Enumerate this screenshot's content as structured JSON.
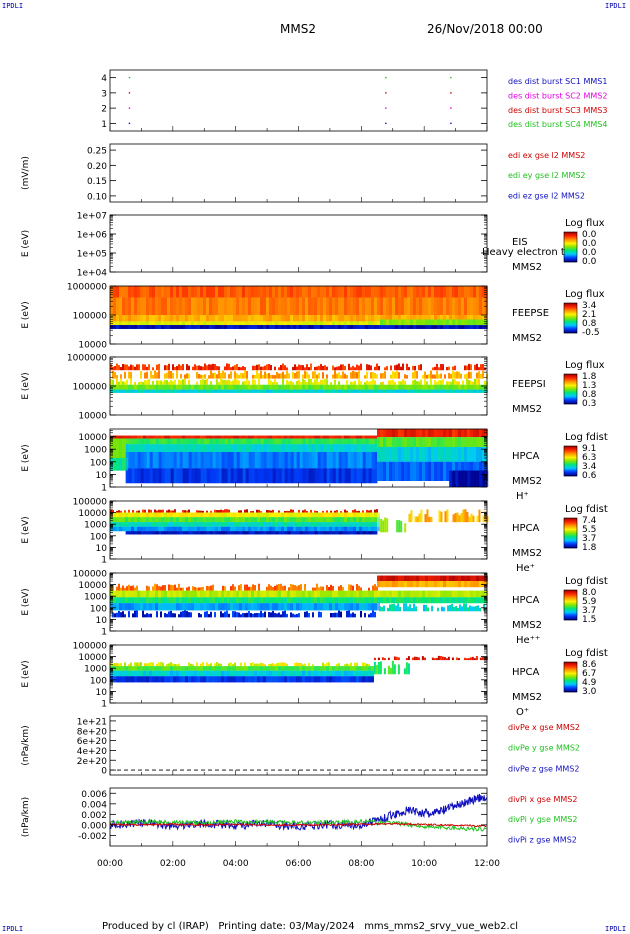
{
  "corner_label": "IPDLI",
  "header": {
    "spacecraft": "MMS2",
    "date": "26/Nov/2018 00:00"
  },
  "footer": {
    "text": "Produced by cl (IRAP)   Printing date: 03/May/2024   mms_mms2_srvy_vue_web2.cl"
  },
  "colors": {
    "blue": "#1010c0",
    "magenta": "#e000e0",
    "red": "#d00000",
    "green": "#20c020"
  },
  "chart_data": [
    {
      "type": "scatter",
      "id": "burst",
      "ylim": [
        0.5,
        4.5
      ],
      "yticks": [
        "1",
        "2",
        "3",
        "4"
      ],
      "legend": [
        {
          "label": "des dist burst SC1 MMS1",
          "color": "#1010c0"
        },
        {
          "label": "des dist burst SC2 MMS2",
          "color": "#e000e0"
        },
        {
          "label": "des dist burst SC3 MMS3",
          "color": "#d00000"
        },
        {
          "label": "des dist burst SC4 MMS4",
          "color": "#20c020"
        }
      ],
      "points": [
        {
          "x": 0.62,
          "y": 4,
          "color": "#20c020"
        },
        {
          "x": 0.62,
          "y": 3,
          "color": "#d00000"
        },
        {
          "x": 0.62,
          "y": 2,
          "color": "#e000e0"
        },
        {
          "x": 0.62,
          "y": 1,
          "color": "#1010c0"
        },
        {
          "x": 8.78,
          "y": 4,
          "color": "#20c020"
        },
        {
          "x": 8.78,
          "y": 3,
          "color": "#d00000"
        },
        {
          "x": 8.78,
          "y": 2,
          "color": "#e000e0"
        },
        {
          "x": 8.78,
          "y": 1,
          "color": "#1010c0"
        },
        {
          "x": 10.85,
          "y": 4,
          "color": "#20c020"
        },
        {
          "x": 10.85,
          "y": 3,
          "color": "#d00000"
        },
        {
          "x": 10.85,
          "y": 2,
          "color": "#e000e0"
        },
        {
          "x": 10.85,
          "y": 1,
          "color": "#1010c0"
        }
      ]
    },
    {
      "type": "line",
      "id": "edi",
      "ylabel": "(mV/m)",
      "ylim": [
        0.08,
        0.27
      ],
      "yticks": [
        "0.10",
        "0.15",
        "0.20",
        "0.25"
      ],
      "legend": [
        {
          "label": "edi ex gse l2 MMS2",
          "color": "#d00000"
        },
        {
          "label": "edi ey gse l2 MMS2",
          "color": "#20c020"
        },
        {
          "label": "edi ez gse l2 MMS2",
          "color": "#1010c0"
        }
      ],
      "series": []
    },
    {
      "type": "heatmap",
      "id": "eis",
      "ylabel": "E (eV)",
      "scale": "log",
      "ylim": [
        10000,
        10000000
      ],
      "yticks": [
        "1e+04",
        "1e+05",
        "1e+06",
        "1e+07"
      ],
      "instrument": [
        "EIS",
        "MMS2"
      ],
      "overlay_text": "Heavy electron t",
      "colorbar": {
        "title": "Log flux",
        "ticks": [
          "0.0",
          "0.0",
          "0.0",
          "0.0"
        ]
      },
      "bands": []
    },
    {
      "type": "heatmap",
      "id": "feepse",
      "ylabel": "E (eV)",
      "scale": "log",
      "ylim": [
        10000,
        1000000
      ],
      "yticks": [
        "10000",
        "100000",
        "1000000"
      ],
      "instrument": [
        "FEEPSE",
        "MMS2"
      ],
      "colorbar": {
        "title": "Log flux",
        "ticks": [
          "3.4",
          "2.1",
          "0.8",
          "-0.5"
        ]
      },
      "bands": [
        {
          "x": [
            0.0,
            12.0
          ],
          "e": [
            400000,
            1000000
          ],
          "level": 0.82
        },
        {
          "x": [
            0.0,
            12.0
          ],
          "e": [
            100000,
            400000
          ],
          "level": 0.78
        },
        {
          "x": [
            0.0,
            12.0
          ],
          "e": [
            60000,
            100000
          ],
          "level": 0.72
        },
        {
          "x": [
            0.0,
            12.0
          ],
          "e": [
            45000,
            60000
          ],
          "level": 0.6
        },
        {
          "x": [
            0.0,
            12.0
          ],
          "e": [
            33000,
            45000
          ],
          "level": 0.04
        },
        {
          "x": [
            8.6,
            12.0
          ],
          "e": [
            45000,
            70000
          ],
          "level": 0.5
        }
      ]
    },
    {
      "type": "heatmap",
      "id": "feepsi",
      "ylabel": "E (eV)",
      "scale": "log",
      "ylim": [
        10000,
        1000000
      ],
      "yticks": [
        "10000",
        "100000",
        "1000000"
      ],
      "instrument": [
        "FEEPSI",
        "MMS2"
      ],
      "colorbar": {
        "title": "Log flux",
        "ticks": [
          "1.8",
          "1.3",
          "0.8",
          "0.3"
        ]
      },
      "bands": [
        {
          "x": [
            0.0,
            12.0
          ],
          "e": [
            350000,
            600000
          ],
          "level": 0.88,
          "speckle": true
        },
        {
          "x": [
            0.0,
            12.0
          ],
          "e": [
            180000,
            350000
          ],
          "level": 0.72,
          "speckle": true
        },
        {
          "x": [
            0.0,
            12.0
          ],
          "e": [
            110000,
            180000
          ],
          "level": 0.6,
          "speckle": true
        },
        {
          "x": [
            0.0,
            12.0
          ],
          "e": [
            75000,
            110000
          ],
          "level": 0.48
        },
        {
          "x": [
            0.0,
            12.0
          ],
          "e": [
            58000,
            75000
          ],
          "level": 0.3
        }
      ]
    },
    {
      "type": "heatmap",
      "id": "hpca_h",
      "ylabel": "E (eV)",
      "scale": "log",
      "ylim": [
        1,
        40000
      ],
      "yticks": [
        "1",
        "10",
        "100",
        "1000",
        "10000"
      ],
      "instrument": [
        "HPCA",
        "MMS2",
        "H⁺"
      ],
      "colorbar": {
        "title": "Log fdist",
        "ticks": [
          "9.1",
          "6.3",
          "3.4",
          "0.6"
        ]
      },
      "bands": [
        {
          "x": [
            0.0,
            8.5
          ],
          "e": [
            7000,
            12000
          ],
          "level": 0.9
        },
        {
          "x": [
            8.5,
            12.0
          ],
          "e": [
            9000,
            40000
          ],
          "level": 0.9
        },
        {
          "x": [
            0.0,
            0.5
          ],
          "e": [
            200,
            7000
          ],
          "level": 0.5
        },
        {
          "x": [
            0.5,
            8.5
          ],
          "e": [
            2500,
            7000
          ],
          "level": 0.42
        },
        {
          "x": [
            0.5,
            8.5
          ],
          "e": [
            600,
            2500
          ],
          "level": 0.3
        },
        {
          "x": [
            0.5,
            8.5
          ],
          "e": [
            30,
            600
          ],
          "level": 0.18
        },
        {
          "x": [
            0.5,
            8.5
          ],
          "e": [
            2,
            30
          ],
          "level": 0.1
        },
        {
          "x": [
            0.0,
            0.5
          ],
          "e": [
            20,
            200
          ],
          "level": 0.35
        },
        {
          "x": [
            8.5,
            12.0
          ],
          "e": [
            1500,
            9000
          ],
          "level": 0.45
        },
        {
          "x": [
            8.5,
            12.0
          ],
          "e": [
            100,
            1500
          ],
          "level": 0.28
        },
        {
          "x": [
            8.5,
            12.0
          ],
          "e": [
            3,
            100
          ],
          "level": 0.16
        },
        {
          "x": [
            10.8,
            12.0
          ],
          "e": [
            1,
            20
          ],
          "level": 0.03
        }
      ]
    },
    {
      "type": "heatmap",
      "id": "hpca_he1",
      "ylabel": "E (eV)",
      "scale": "log",
      "ylim": [
        1,
        100000
      ],
      "yticks": [
        "1",
        "10",
        "100",
        "1000",
        "10000",
        "100000"
      ],
      "instrument": [
        "HPCA",
        "MMS2",
        "He⁺"
      ],
      "colorbar": {
        "title": "Log fdist",
        "ticks": [
          "7.4",
          "5.5",
          "3.7",
          "1.8"
        ]
      },
      "bands": [
        {
          "x": [
            0.0,
            8.5
          ],
          "e": [
            10000,
            20000
          ],
          "level": 0.92,
          "speckle": true
        },
        {
          "x": [
            0.0,
            8.5
          ],
          "e": [
            4000,
            10000
          ],
          "level": 0.62
        },
        {
          "x": [
            0.0,
            8.5
          ],
          "e": [
            1500,
            4000
          ],
          "level": 0.45
        },
        {
          "x": [
            0.0,
            8.5
          ],
          "e": [
            600,
            1500
          ],
          "level": 0.32
        },
        {
          "x": [
            0.0,
            8.5
          ],
          "e": [
            250,
            600
          ],
          "level": 0.2
        },
        {
          "x": [
            0.5,
            8.5
          ],
          "e": [
            130,
            250
          ],
          "level": 0.05
        },
        {
          "x": [
            8.6,
            9.4
          ],
          "e": [
            200,
            6000
          ],
          "level": 0.5,
          "speckle": true
        },
        {
          "x": [
            9.5,
            12.0
          ],
          "e": [
            1500,
            20000
          ],
          "level": 0.7,
          "speckle": true
        }
      ]
    },
    {
      "type": "heatmap",
      "id": "hpca_he2",
      "ylabel": "E (eV)",
      "scale": "log",
      "ylim": [
        1,
        100000
      ],
      "yticks": [
        "1",
        "10",
        "100",
        "1000",
        "10000",
        "100000"
      ],
      "instrument": [
        "HPCA",
        "MMS2",
        "He⁺⁺"
      ],
      "colorbar": {
        "title": "Log fdist",
        "ticks": [
          "8.0",
          "5.9",
          "3.7",
          "1.5"
        ]
      },
      "bands": [
        {
          "x": [
            8.5,
            12.0
          ],
          "e": [
            20000,
            60000
          ],
          "level": 0.95
        },
        {
          "x": [
            0.0,
            8.5
          ],
          "e": [
            3000,
            12000
          ],
          "level": 0.8,
          "speckle": true
        },
        {
          "x": [
            8.5,
            12.0
          ],
          "e": [
            6000,
            20000
          ],
          "level": 0.72
        },
        {
          "x": [
            0.0,
            12.0
          ],
          "e": [
            800,
            3000
          ],
          "level": 0.55
        },
        {
          "x": [
            0.0,
            12.0
          ],
          "e": [
            250,
            800
          ],
          "level": 0.38
        },
        {
          "x": [
            0.0,
            8.5
          ],
          "e": [
            60,
            250
          ],
          "level": 0.22
        },
        {
          "x": [
            0.0,
            8.5
          ],
          "e": [
            15,
            60
          ],
          "level": 0.08,
          "speckle": true
        },
        {
          "x": [
            8.5,
            12.0
          ],
          "e": [
            50,
            250
          ],
          "level": 0.3,
          "speckle": true
        }
      ]
    },
    {
      "type": "heatmap",
      "id": "hpca_o",
      "ylabel": "E (eV)",
      "scale": "log",
      "ylim": [
        1,
        100000
      ],
      "yticks": [
        "1",
        "10",
        "100",
        "1000",
        "10000",
        "100000"
      ],
      "instrument": [
        "HPCA",
        "MMS2",
        "O⁺"
      ],
      "colorbar": {
        "title": "Log fdist",
        "ticks": [
          "8.6",
          "6.7",
          "4.9",
          "3.0"
        ]
      },
      "bands": [
        {
          "x": [
            0.0,
            8.4
          ],
          "e": [
            1500,
            3500
          ],
          "level": 0.6,
          "speckle": true
        },
        {
          "x": [
            0.0,
            8.4
          ],
          "e": [
            600,
            1500
          ],
          "level": 0.45
        },
        {
          "x": [
            0.0,
            8.4
          ],
          "e": [
            200,
            600
          ],
          "level": 0.28
        },
        {
          "x": [
            0.0,
            8.4
          ],
          "e": [
            60,
            200
          ],
          "level": 0.1
        },
        {
          "x": [
            8.4,
            12.0
          ],
          "e": [
            5000,
            12000
          ],
          "level": 0.92,
          "speckle": true
        },
        {
          "x": [
            8.4,
            9.5
          ],
          "e": [
            300,
            5000
          ],
          "level": 0.4,
          "speckle": true
        }
      ]
    },
    {
      "type": "line",
      "id": "divpe",
      "ylabel": "(nPa/km)",
      "ylim": [
        -1e+20,
        1.1e+21
      ],
      "yticks": [
        "0",
        "2e+20",
        "4e+20",
        "6e+20",
        "8e+20",
        "1e+21"
      ],
      "zero_line": true,
      "legend": [
        {
          "label": "divPe x gse MMS2",
          "color": "#d00000"
        },
        {
          "label": "divPe y gse MMS2",
          "color": "#20c020"
        },
        {
          "label": "divPe z gse MMS2",
          "color": "#1010c0"
        }
      ],
      "series": []
    },
    {
      "type": "line",
      "id": "divpi",
      "ylabel": "(nPa/km)",
      "ylim": [
        -0.004,
        0.007
      ],
      "yticks": [
        "-0.002",
        "0.000",
        "0.002",
        "0.004",
        "0.006"
      ],
      "legend": [
        {
          "label": "divPi x gse MMS2",
          "color": "#d00000"
        },
        {
          "label": "divPi y gse MMS2",
          "color": "#20c020"
        },
        {
          "label": "divPi z gse MMS2",
          "color": "#1010c0"
        }
      ],
      "series": [
        {
          "name": "divPi z gse MMS2",
          "color": "#1010c0",
          "x": [
            0,
            1,
            2,
            3,
            4,
            5,
            6,
            7,
            8,
            8.8,
            9.5,
            10.2,
            10.8,
            11.4,
            12.0
          ],
          "y": [
            0.0,
            0.0004,
            -0.0002,
            0.0003,
            -0.0001,
            0.0002,
            -0.0003,
            0.0001,
            0.0,
            0.0015,
            0.0028,
            0.002,
            0.0032,
            0.0045,
            0.0055
          ],
          "noise": 0.0008
        },
        {
          "name": "divPi y gse MMS2",
          "color": "#20c020",
          "x": [
            0,
            1,
            2,
            3,
            4,
            5,
            6,
            7,
            8,
            9,
            10,
            11,
            12
          ],
          "y": [
            0.0003,
            0.0006,
            0.0005,
            0.0004,
            0.0006,
            0.0005,
            0.0004,
            0.0005,
            0.0006,
            0.0004,
            -0.0003,
            -0.0006,
            -0.0008
          ],
          "noise": 0.0004
        },
        {
          "name": "divPi x gse MMS2",
          "color": "#d00000",
          "x": [
            0,
            1,
            2,
            3,
            4,
            5,
            6,
            7,
            8,
            9,
            10,
            11,
            12
          ],
          "y": [
            0.0001,
            0.0,
            0.0001,
            0.0,
            0.0001,
            0.0,
            0.0,
            0.0,
            0.0001,
            0.0002,
            0.0001,
            -0.0001,
            -0.0002
          ],
          "noise": 0.00015
        }
      ]
    }
  ],
  "time_axis": {
    "ticks": [
      "00:00",
      "02:00",
      "04:00",
      "06:00",
      "08:00",
      "10:00",
      "12:00"
    ],
    "xlim": [
      0,
      12
    ]
  }
}
